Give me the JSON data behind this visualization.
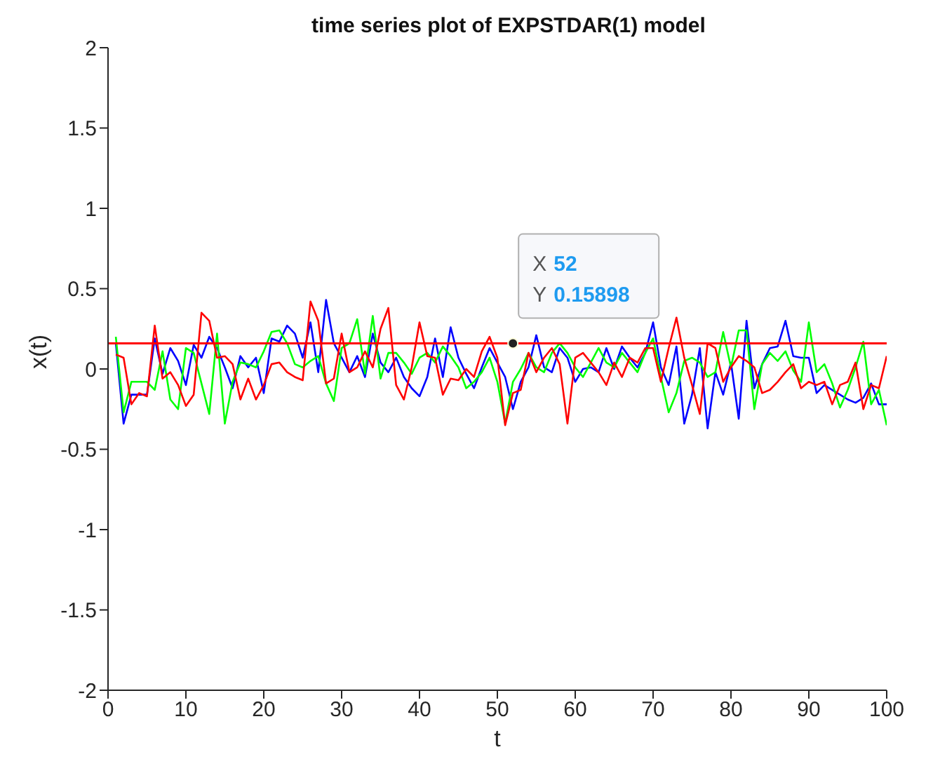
{
  "chart_data": {
    "type": "line",
    "title": "time series plot of EXPSTDAR(1) model",
    "xlabel": "t",
    "ylabel": "x(t)",
    "x": [
      1,
      2,
      3,
      4,
      5,
      6,
      7,
      8,
      9,
      10,
      11,
      12,
      13,
      14,
      15,
      16,
      17,
      18,
      19,
      20,
      21,
      22,
      23,
      24,
      25,
      26,
      27,
      28,
      29,
      30,
      31,
      32,
      33,
      34,
      35,
      36,
      37,
      38,
      39,
      40,
      41,
      42,
      43,
      44,
      45,
      46,
      47,
      48,
      49,
      50,
      51,
      52,
      53,
      54,
      55,
      56,
      57,
      58,
      59,
      60,
      61,
      62,
      63,
      64,
      65,
      66,
      67,
      68,
      69,
      70,
      71,
      72,
      73,
      74,
      75,
      76,
      77,
      78,
      79,
      80,
      81,
      82,
      83,
      84,
      85,
      86,
      87,
      88,
      89,
      90,
      91,
      92,
      93,
      94,
      95,
      96,
      97,
      98,
      99,
      100
    ],
    "series": [
      {
        "color": "#0000ff",
        "values": [
          0.16,
          -0.34,
          -0.16,
          -0.16,
          -0.16,
          0.19,
          -0.03,
          0.13,
          0.05,
          -0.1,
          0.15,
          0.07,
          0.2,
          0.13,
          0.01,
          -0.12,
          0.08,
          0.01,
          0.07,
          -0.15,
          0.19,
          0.17,
          0.27,
          0.22,
          0.07,
          0.29,
          -0.02,
          0.43,
          0.16,
          0.07,
          -0.02,
          0.08,
          -0.05,
          0.22,
          0.04,
          -0.02,
          0.07,
          -0.05,
          -0.12,
          -0.17,
          -0.05,
          0.19,
          -0.05,
          0.26,
          0.07,
          -0.03,
          -0.12,
          0.01,
          0.13,
          0.04,
          -0.05,
          -0.25,
          -0.08,
          0.01,
          0.21,
          0.01,
          -0.02,
          0.13,
          0.07,
          -0.08,
          0,
          0.01,
          -0.02,
          0.13,
          0,
          0.14,
          0.07,
          0.01,
          0.1,
          0.29,
          0.01,
          -0.1,
          0.14,
          -0.34,
          -0.16,
          0.13,
          -0.37,
          -0.02,
          -0.16,
          0.04,
          -0.31,
          0.3,
          -0.12,
          0.03,
          0.13,
          0.14,
          0.3,
          0.08,
          0.07,
          0.07,
          -0.15,
          -0.1,
          -0.13,
          -0.16,
          -0.19,
          -0.21,
          -0.18,
          -0.09,
          -0.22,
          -0.22
        ]
      },
      {
        "color": "#00ff00",
        "values": [
          0.2,
          -0.27,
          -0.08,
          -0.08,
          -0.08,
          -0.13,
          0.11,
          -0.19,
          -0.25,
          0.13,
          0.1,
          -0.09,
          -0.28,
          0.22,
          -0.34,
          -0.08,
          0.04,
          0.03,
          0.01,
          0.11,
          0.23,
          0.24,
          0.16,
          0.03,
          0.01,
          0.05,
          0.08,
          -0.09,
          -0.2,
          0.13,
          0.16,
          0.31,
          -0.03,
          0.33,
          -0.06,
          0.1,
          0.1,
          0.04,
          -0.03,
          0.07,
          0.1,
          0.04,
          0.14,
          0.08,
          0.01,
          -0.12,
          -0.08,
          -0.02,
          0.07,
          -0.08,
          -0.34,
          -0.08,
          0,
          0.1,
          0.01,
          -0.02,
          0.1,
          0.16,
          0.1,
          0.01,
          -0.05,
          0.04,
          0.13,
          0.04,
          0.01,
          0.1,
          0.04,
          -0.02,
          0.1,
          0.19,
          -0.05,
          -0.27,
          -0.15,
          0.05,
          0.07,
          0.04,
          -0.05,
          -0.02,
          0.23,
          0.01,
          0.24,
          0.24,
          -0.25,
          0.03,
          0.1,
          0.05,
          0.11,
          -0.01,
          -0.08,
          0.29,
          -0.02,
          0.03,
          -0.09,
          -0.24,
          -0.13,
          0.01,
          0.17,
          -0.22,
          -0.13,
          -0.35
        ]
      },
      {
        "color": "#ff0000",
        "values": [
          0.09,
          0.07,
          -0.22,
          -0.15,
          -0.17,
          0.27,
          -0.06,
          -0.02,
          -0.1,
          -0.23,
          -0.16,
          0.35,
          0.3,
          0.07,
          0.08,
          0.03,
          -0.19,
          -0.06,
          -0.19,
          -0.1,
          0.03,
          0.04,
          -0.02,
          -0.05,
          -0.07,
          0.42,
          0.3,
          -0.09,
          -0.06,
          0.22,
          -0.02,
          0.01,
          0.11,
          0.01,
          0.25,
          0.38,
          -0.1,
          -0.19,
          0.01,
          0.29,
          0.08,
          0.07,
          -0.16,
          -0.06,
          -0.07,
          0,
          -0.05,
          0.11,
          0.2,
          0.07,
          -0.35,
          -0.15,
          -0.13,
          0.1,
          -0.02,
          0.07,
          0.13,
          0.03,
          -0.34,
          0.07,
          0.1,
          0.04,
          -0.02,
          -0.1,
          0.04,
          -0.05,
          0.07,
          0.04,
          0.13,
          0.13,
          -0.08,
          0.13,
          0.32,
          0.07,
          -0.1,
          -0.28,
          0.16,
          0.13,
          -0.08,
          0.01,
          0.08,
          0.05,
          0.01,
          -0.15,
          -0.13,
          -0.08,
          -0.02,
          0.03,
          -0.12,
          -0.08,
          -0.1,
          -0.08,
          -0.22,
          -0.1,
          -0.08,
          0.04,
          -0.25,
          -0.1,
          -0.12,
          0.08
        ]
      }
    ],
    "ref_lines": [
      {
        "axis": "y",
        "value": 0.15898,
        "color": "#ff0000"
      }
    ],
    "annotations": [
      {
        "text": "X 52\nY 0.15898",
        "x": 52,
        "y": 0.15898
      }
    ],
    "xlim": [
      0,
      100
    ],
    "xticks": [
      0,
      10,
      20,
      30,
      40,
      50,
      60,
      70,
      80,
      90,
      100
    ],
    "ylim": [
      -2,
      2
    ],
    "yticks": [
      -2,
      -1.5,
      -1,
      -0.5,
      0,
      0.5,
      1,
      1.5,
      2
    ],
    "grid": false,
    "legend": false,
    "marker": "none",
    "line_style": "solid"
  }
}
